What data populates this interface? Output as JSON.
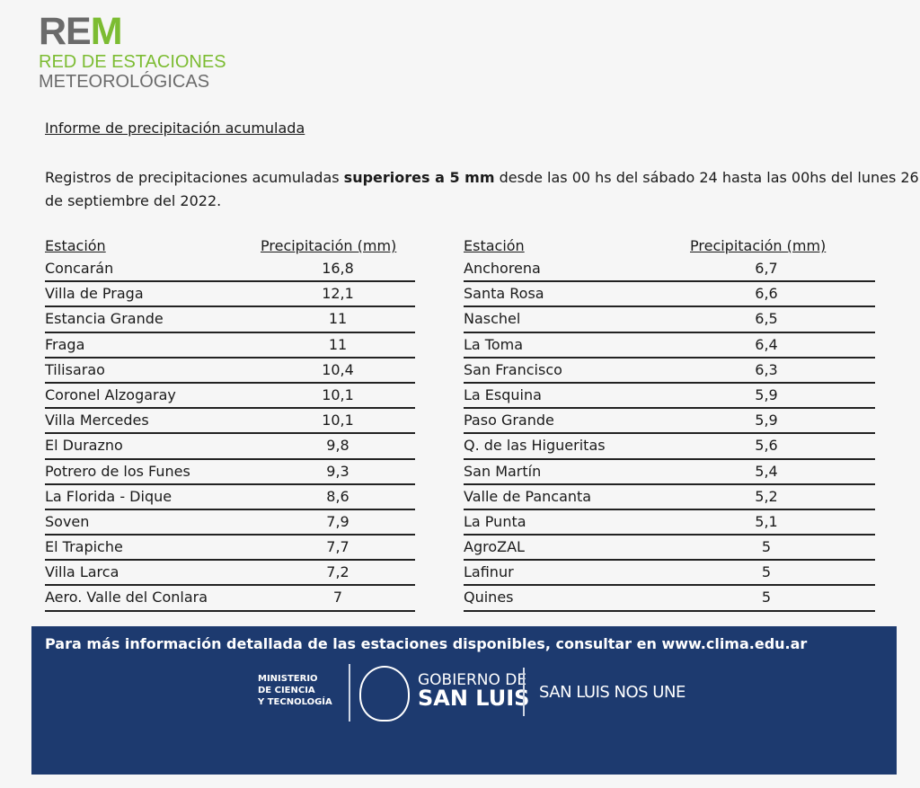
{
  "logo": {
    "rem": "RE",
    "rem_m": "M",
    "line1": "RED DE ESTACIONES",
    "line2": "METEOROLÓGICAS"
  },
  "title": "Informe de precipitación acumulada",
  "intro": {
    "pre": "Registros de precipitaciones acumuladas ",
    "bold": "superiores a 5 mm",
    "post": " desde las 00 hs del sábado 24 hasta las 00hs del lunes 26 de septiembre del 2022."
  },
  "headers": {
    "station": "Estación",
    "precip": "Precipitación (mm)"
  },
  "left": [
    [
      "Concarán",
      "16,8"
    ],
    [
      "Villa de Praga",
      "12,1"
    ],
    [
      "Estancia Grande",
      "11"
    ],
    [
      "Fraga",
      "11"
    ],
    [
      "Tilisarao",
      "10,4"
    ],
    [
      "Coronel Alzogaray",
      "10,1"
    ],
    [
      "Villa Mercedes",
      "10,1"
    ],
    [
      "El Durazno",
      "9,8"
    ],
    [
      "Potrero de los Funes",
      "9,3"
    ],
    [
      "La Florida - Dique",
      "8,6"
    ],
    [
      "Soven",
      "7,9"
    ],
    [
      "El Trapiche",
      "7,7"
    ],
    [
      "Villa Larca",
      "7,2"
    ],
    [
      "Aero. Valle del Conlara",
      "7"
    ]
  ],
  "right": [
    [
      "Anchorena",
      "6,7"
    ],
    [
      "Santa Rosa",
      "6,6"
    ],
    [
      "Naschel",
      "6,5"
    ],
    [
      "La Toma",
      "6,4"
    ],
    [
      "San Francisco",
      "6,3"
    ],
    [
      "La Esquina",
      "5,9"
    ],
    [
      "Paso Grande",
      "5,9"
    ],
    [
      "Q. de las Higueritas",
      "5,6"
    ],
    [
      "San Martín",
      "5,4"
    ],
    [
      "Valle de Pancanta",
      "5,2"
    ],
    [
      "La Punta",
      "5,1"
    ],
    [
      "AgroZAL",
      "5"
    ],
    [
      "Lafinur",
      "5"
    ],
    [
      "Quines",
      "5"
    ]
  ],
  "banner": {
    "text": "Para más información detallada de las estaciones disponibles, consultar en  www.clima.edu.ar",
    "ministry": [
      "MINISTERIO",
      "DE CIENCIA",
      "Y TECNOLOGÍA"
    ],
    "gob1": "GOBIERNO DE",
    "gob2": "SAN LUIS",
    "slogan": "SAN LUIS NOS UNE"
  },
  "colors": {
    "green": "#7cbc32",
    "gray": "#6b6b6b",
    "banner": "#1d3a6f"
  }
}
